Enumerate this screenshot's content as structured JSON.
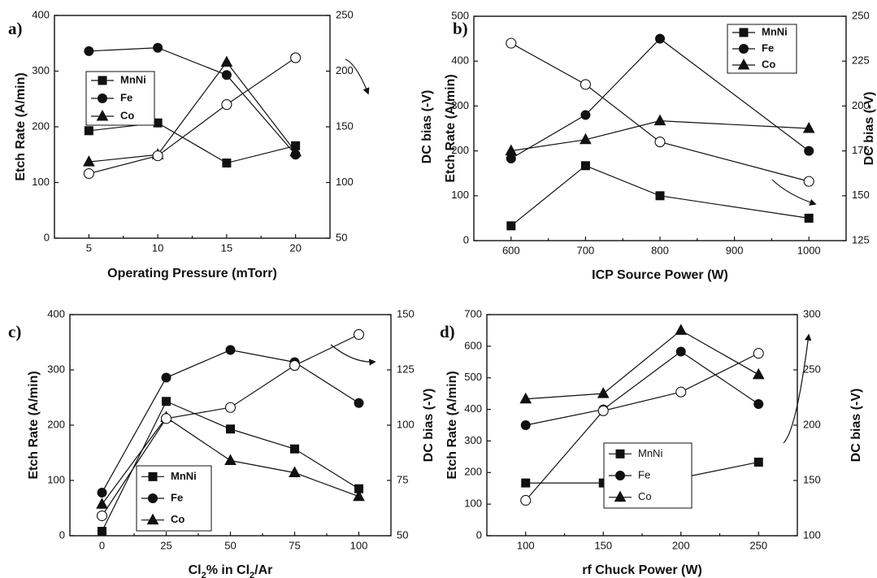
{
  "chart_data": [
    {
      "panel": "a)",
      "type": "line",
      "xlabel": "Operating Pressure (mTorr)",
      "ylabel": "Etch Rate (A/min)",
      "y2label": "DC bias (-V)",
      "xlim": [
        2.5,
        22.5
      ],
      "ylim": [
        0,
        400
      ],
      "y2lim": [
        50,
        250
      ],
      "xticks": [
        5,
        10,
        15,
        20
      ],
      "yticks": [
        0,
        100,
        200,
        300,
        400
      ],
      "y2ticks": [
        50,
        100,
        150,
        200,
        250
      ],
      "legend": [
        "MnNi",
        "Fe",
        "Co"
      ],
      "legend_position": "top-left",
      "series": [
        {
          "name": "MnNi",
          "marker": "square",
          "x": [
            5,
            10,
            15,
            20
          ],
          "values": [
            193,
            207,
            135,
            166
          ]
        },
        {
          "name": "Fe",
          "marker": "circle",
          "x": [
            5,
            10,
            15,
            20
          ],
          "values": [
            336,
            342,
            293,
            150
          ]
        },
        {
          "name": "Co",
          "marker": "triangle",
          "x": [
            5,
            10,
            15,
            20
          ],
          "values": [
            137,
            150,
            316,
            155
          ]
        }
      ],
      "bias": {
        "marker": "open-circle",
        "x": [
          5,
          10,
          15,
          20
        ],
        "values": [
          108,
          124,
          170,
          212
        ]
      },
      "arrow": "to-right-axis"
    },
    {
      "panel": "b)",
      "type": "line",
      "xlabel": "ICP Source Power (W)",
      "ylabel": "Etch Rate (A/min)",
      "y2label": "DC bias (-V)",
      "xlim": [
        550,
        1050
      ],
      "ylim": [
        0,
        500
      ],
      "y2lim": [
        125,
        250
      ],
      "xticks": [
        600,
        700,
        800,
        900,
        1000
      ],
      "yticks": [
        0,
        100,
        200,
        300,
        400,
        500
      ],
      "y2ticks": [
        125,
        150,
        175,
        200,
        225,
        250
      ],
      "legend": [
        "MnNi",
        "Fe",
        "Co"
      ],
      "legend_position": "top-right",
      "series": [
        {
          "name": "MnNi",
          "marker": "square",
          "x": [
            600,
            700,
            800,
            1000
          ],
          "values": [
            33,
            167,
            100,
            50
          ]
        },
        {
          "name": "Fe",
          "marker": "circle",
          "x": [
            600,
            700,
            800,
            1000
          ],
          "values": [
            183,
            280,
            450,
            200
          ]
        },
        {
          "name": "Co",
          "marker": "triangle",
          "x": [
            600,
            700,
            800,
            1000
          ],
          "values": [
            200,
            225,
            267,
            250
          ]
        }
      ],
      "bias": {
        "marker": "open-circle",
        "x": [
          600,
          700,
          800,
          1000
        ],
        "values": [
          235,
          212,
          180,
          158
        ]
      },
      "arrow": "to-right-axis"
    },
    {
      "panel": "c)",
      "type": "line",
      "xlabel": "Cl2% in Cl2/Ar",
      "ylabel": "Etch Rate (A/min)",
      "y2label": "DC bias (-V)",
      "xlim": [
        -12.5,
        112.5
      ],
      "ylim": [
        0,
        400
      ],
      "y2lim": [
        50,
        150
      ],
      "xticks": [
        0,
        25,
        50,
        75,
        100
      ],
      "yticks": [
        0,
        100,
        200,
        300,
        400
      ],
      "y2ticks": [
        50,
        75,
        100,
        125,
        150
      ],
      "legend": [
        "MnNi",
        "Fe",
        "Co"
      ],
      "legend_position": "bottom-left",
      "series": [
        {
          "name": "MnNi",
          "marker": "square",
          "x": [
            0,
            25,
            50,
            75,
            100
          ],
          "values": [
            8,
            243,
            193,
            157,
            85
          ]
        },
        {
          "name": "Fe",
          "marker": "circle",
          "x": [
            0,
            25,
            50,
            75,
            100
          ],
          "values": [
            78,
            286,
            336,
            314,
            240
          ]
        },
        {
          "name": "Co",
          "marker": "triangle",
          "x": [
            0,
            25,
            50,
            75,
            100
          ],
          "values": [
            57,
            214,
            136,
            114,
            71
          ]
        }
      ],
      "bias": {
        "marker": "open-circle",
        "x": [
          0,
          25,
          50,
          75,
          100
        ],
        "values": [
          59,
          103,
          108,
          127,
          141
        ]
      },
      "arrow": "to-right-axis"
    },
    {
      "panel": "d)",
      "type": "line",
      "xlabel": "rf Chuck Power (W)",
      "ylabel": "Etch Rate (A/min)",
      "y2label": "DC bias (-V)",
      "xlim": [
        75,
        275
      ],
      "ylim": [
        0,
        700
      ],
      "y2lim": [
        100,
        300
      ],
      "xticks": [
        100,
        150,
        200,
        250
      ],
      "yticks": [
        0,
        100,
        200,
        300,
        400,
        500,
        600,
        700
      ],
      "y2ticks": [
        100,
        150,
        200,
        250,
        300
      ],
      "legend": [
        "MnNi",
        "Fe",
        "Co"
      ],
      "legend_position": "bottom-right",
      "series": [
        {
          "name": "MnNi",
          "marker": "square",
          "x": [
            100,
            150,
            200,
            250
          ],
          "values": [
            167,
            167,
            183,
            233
          ]
        },
        {
          "name": "Fe",
          "marker": "circle",
          "x": [
            100,
            150,
            200,
            250
          ],
          "values": [
            350,
            400,
            583,
            417
          ]
        },
        {
          "name": "Co",
          "marker": "triangle",
          "x": [
            100,
            150,
            200,
            250
          ],
          "values": [
            433,
            450,
            650,
            510
          ]
        }
      ],
      "bias": {
        "marker": "open-circle",
        "x": [
          100,
          150,
          200,
          250
        ],
        "values": [
          132,
          213,
          230,
          265
        ]
      },
      "arrow": "to-right-axis"
    }
  ]
}
